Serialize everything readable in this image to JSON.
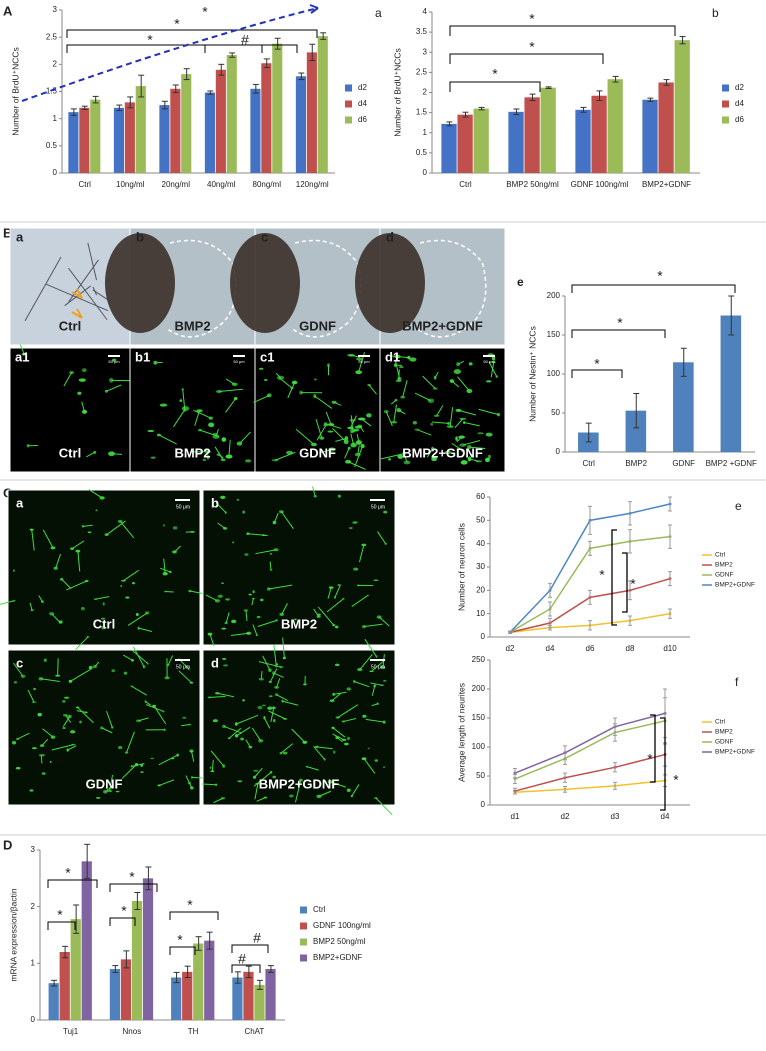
{
  "figure_labels": [
    "A",
    "B",
    "C",
    "D"
  ],
  "images": {
    "B_top": [
      {
        "letter": "a",
        "caption": "Ctrl"
      },
      {
        "letter": "b",
        "caption": "BMP2"
      },
      {
        "letter": "c",
        "caption": "GDNF"
      },
      {
        "letter": "d",
        "caption": "BMP2+GDNF"
      }
    ],
    "B_bottom": [
      {
        "letter": "a1",
        "caption": "Ctrl"
      },
      {
        "letter": "b1",
        "caption": "BMP2"
      },
      {
        "letter": "c1",
        "caption": "GDNF"
      },
      {
        "letter": "d1",
        "caption": "BMP2+GDNF"
      }
    ],
    "C": [
      {
        "letter": "a",
        "caption": "Ctrl"
      },
      {
        "letter": "b",
        "caption": "BMP2"
      },
      {
        "letter": "c",
        "caption": "GDNF"
      },
      {
        "letter": "d",
        "caption": "BMP2+GDNF"
      }
    ],
    "scale_label": "50 μm"
  },
  "chart_data": [
    {
      "type": "bar",
      "panel_letter": "a",
      "y_label": "Number of BrdU⁺NCCs",
      "categories": [
        "Ctrl",
        "10ng/ml",
        "20ng/ml",
        "40ng/ml",
        "80ng/ml",
        "120ng/ml"
      ],
      "series": [
        {
          "name": "d2",
          "color": "#4472c4",
          "values": [
            1.12,
            1.2,
            1.25,
            1.48,
            1.55,
            1.78
          ],
          "errors": [
            0.06,
            0.05,
            0.07,
            0.03,
            0.08,
            0.06
          ]
        },
        {
          "name": "d4",
          "color": "#c0504d",
          "values": [
            1.2,
            1.3,
            1.55,
            1.9,
            2.02,
            2.22
          ],
          "errors": [
            0.03,
            0.1,
            0.07,
            0.1,
            0.08,
            0.15
          ]
        },
        {
          "name": "d6",
          "color": "#9bbb59",
          "values": [
            1.35,
            1.6,
            1.82,
            2.17,
            2.38,
            2.52
          ],
          "errors": [
            0.06,
            0.2,
            0.1,
            0.04,
            0.1,
            0.06
          ]
        }
      ],
      "ylim": [
        0,
        3
      ],
      "yticks": [
        0,
        0.5,
        1,
        1.5,
        2,
        2.5,
        3
      ],
      "annotations": [
        "*",
        "*",
        "*",
        "#"
      ]
    },
    {
      "type": "bar",
      "panel_letter": "b",
      "y_label": "Number of BrdU⁺NCCs",
      "categories": [
        "Ctrl",
        "BMP2 50ng/ml",
        "GDNF 100ng/ml",
        "BMP2+GDNF"
      ],
      "series": [
        {
          "name": "d2",
          "color": "#4472c4",
          "values": [
            1.22,
            1.52,
            1.57,
            1.82
          ],
          "errors": [
            0.05,
            0.07,
            0.06,
            0.04
          ]
        },
        {
          "name": "d4",
          "color": "#c0504d",
          "values": [
            1.45,
            1.88,
            1.92,
            2.25
          ],
          "errors": [
            0.06,
            0.08,
            0.12,
            0.07
          ]
        },
        {
          "name": "d6",
          "color": "#9bbb59",
          "values": [
            1.6,
            2.12,
            2.33,
            3.3
          ],
          "errors": [
            0.03,
            0.02,
            0.07,
            0.09
          ]
        }
      ],
      "ylim": [
        0,
        4
      ],
      "yticks": [
        0,
        0.5,
        1,
        1.5,
        2,
        2.5,
        3,
        3.5,
        4
      ],
      "annotations": [
        "*",
        "*",
        "*"
      ]
    },
    {
      "type": "bar",
      "panel_letter": "e",
      "y_label": "Number of Nestin⁺ NCCs",
      "categories": [
        "Ctrl",
        "BMP2",
        "GDNF",
        "BMP2 +GDNF"
      ],
      "series": [
        {
          "name": null,
          "color": "#4f81bd",
          "values": [
            25,
            53,
            115,
            175
          ],
          "errors": [
            12,
            22,
            18,
            25
          ]
        }
      ],
      "ylim": [
        0,
        200
      ],
      "yticks": [
        0,
        50,
        100,
        150,
        200
      ],
      "annotations": [
        "*",
        "*",
        "*"
      ]
    },
    {
      "type": "line",
      "panel_letter": "e",
      "y_label": "Number of neuron cells",
      "categories": [
        "d2",
        "d4",
        "d6",
        "d8",
        "d10"
      ],
      "series": [
        {
          "name": "Ctrl",
          "color": "#f2c12e",
          "values": [
            2,
            4,
            5,
            7,
            10
          ],
          "errors": [
            0.5,
            1,
            2,
            2,
            2
          ]
        },
        {
          "name": "BMP2",
          "color": "#c0504d",
          "values": [
            2,
            6,
            17,
            20,
            25
          ],
          "errors": [
            0.5,
            2,
            3,
            4,
            3
          ]
        },
        {
          "name": "GDNF",
          "color": "#9bbb59",
          "values": [
            2,
            12,
            38,
            41,
            43
          ],
          "errors": [
            0.5,
            3,
            3,
            5,
            5
          ]
        },
        {
          "name": "BMP2+GDNF",
          "color": "#4a86c8",
          "values": [
            2,
            20,
            50,
            53,
            57
          ],
          "errors": [
            0.5,
            3,
            6,
            5,
            3
          ]
        }
      ],
      "ylim": [
        0,
        60
      ],
      "yticks": [
        0,
        10,
        20,
        30,
        40,
        50,
        60
      ],
      "annotations": [
        "*",
        "*"
      ]
    },
    {
      "type": "line",
      "panel_letter": "f",
      "y_label": "Average length of neurites",
      "categories": [
        "d1",
        "d2",
        "d3",
        "d4"
      ],
      "series": [
        {
          "name": "Ctrl",
          "color": "#f2c12e",
          "values": [
            22,
            27,
            33,
            42
          ],
          "errors": [
            3,
            5,
            6,
            10
          ]
        },
        {
          "name": "BMP2",
          "color": "#c0504d",
          "values": [
            24,
            47,
            65,
            87
          ],
          "errors": [
            5,
            8,
            8,
            20
          ]
        },
        {
          "name": "GDNF",
          "color": "#9bbb59",
          "values": [
            45,
            80,
            125,
            145
          ],
          "errors": [
            8,
            10,
            15,
            40
          ]
        },
        {
          "name": "BMP2+GDNF",
          "color": "#8064a2",
          "values": [
            55,
            90,
            135,
            158
          ],
          "errors": [
            8,
            12,
            15,
            42
          ]
        }
      ],
      "ylim": [
        0,
        250
      ],
      "yticks": [
        0,
        50,
        100,
        150,
        200,
        250
      ],
      "annotations": [
        "*",
        "*"
      ]
    },
    {
      "type": "bar",
      "panel_letter": null,
      "y_label": "mRNA expression/βactin",
      "categories": [
        "Tuj1",
        "Nnos",
        "TH",
        "ChAT"
      ],
      "series": [
        {
          "name": "Ctrl",
          "color": "#4f81bd",
          "values": [
            0.65,
            0.9,
            0.75,
            0.75
          ],
          "errors": [
            0.05,
            0.06,
            0.09,
            0.1
          ]
        },
        {
          "name": "GDNF 100ng/ml",
          "color": "#c0504d",
          "values": [
            1.2,
            1.07,
            0.85,
            0.85
          ],
          "errors": [
            0.1,
            0.15,
            0.1,
            0.1
          ]
        },
        {
          "name": "BMP2 50ng/ml",
          "color": "#9bbb59",
          "values": [
            1.78,
            2.1,
            1.35,
            0.62
          ],
          "errors": [
            0.25,
            0.15,
            0.12,
            0.08
          ]
        },
        {
          "name": "BMP2+GDNF",
          "color": "#8064a2",
          "values": [
            2.8,
            2.5,
            1.4,
            0.9
          ],
          "errors": [
            0.3,
            0.2,
            0.15,
            0.06
          ]
        }
      ],
      "ylim": [
        0,
        3
      ],
      "yticks": [
        0,
        1,
        2,
        3
      ],
      "annotations": [
        "*",
        "*",
        "*",
        "*",
        "*",
        "*",
        "#",
        "#"
      ]
    }
  ]
}
